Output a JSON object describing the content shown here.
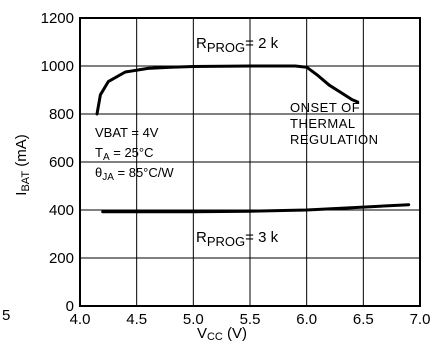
{
  "chart_data": {
    "type": "line",
    "xlabel": "VCC (V)",
    "ylabel": "IBAT (mA)",
    "xlim": [
      4.0,
      7.0
    ],
    "ylim": [
      0,
      1200
    ],
    "x_ticks": [
      "4.0",
      "4.5",
      "5.0",
      "5.5",
      "6.0",
      "6.5",
      "7.0"
    ],
    "y_ticks": [
      "0",
      "200",
      "400",
      "600",
      "800",
      "1000",
      "1200"
    ],
    "grid": true,
    "series": [
      {
        "name": "RPROG = 2 k",
        "x": [
          4.15,
          4.18,
          4.25,
          4.4,
          4.6,
          4.8,
          5.0,
          5.5,
          5.9,
          6.0,
          6.1,
          6.2,
          6.3,
          6.4,
          6.45
        ],
        "y": [
          800,
          880,
          935,
          975,
          990,
          995,
          998,
          1000,
          1000,
          995,
          960,
          920,
          890,
          860,
          850
        ]
      },
      {
        "name": "RPROG = 3 k",
        "x": [
          4.2,
          4.5,
          5.0,
          5.5,
          6.0,
          6.5,
          6.9
        ],
        "y": [
          393,
          393,
          393,
          395,
          400,
          412,
          422
        ]
      }
    ],
    "annotations": {
      "label_2k_main": "R",
      "label_2k_sub": "PROG",
      "label_2k_tail": "= 2 k",
      "label_3k_main": "R",
      "label_3k_sub": "PROG",
      "label_3k_tail": "= 3 k",
      "onset_line1": "ONSET OF",
      "onset_line2": "THERMAL",
      "onset_line3": "REGULATION",
      "cond_vbat": "VBAT = 4V",
      "cond_ta_main": "T",
      "cond_ta_sub": "A",
      "cond_ta_tail": " = 25°C",
      "cond_theta_main": "θ",
      "cond_theta_sub": "JA",
      "cond_theta_tail": " = 85°C/W",
      "stray_left": "5"
    },
    "xlabel_main": "V",
    "xlabel_sub": "CC",
    "xlabel_tail": " (V)",
    "ylabel_main": "I",
    "ylabel_sub": "BAT",
    "ylabel_tail": " (mA)"
  }
}
